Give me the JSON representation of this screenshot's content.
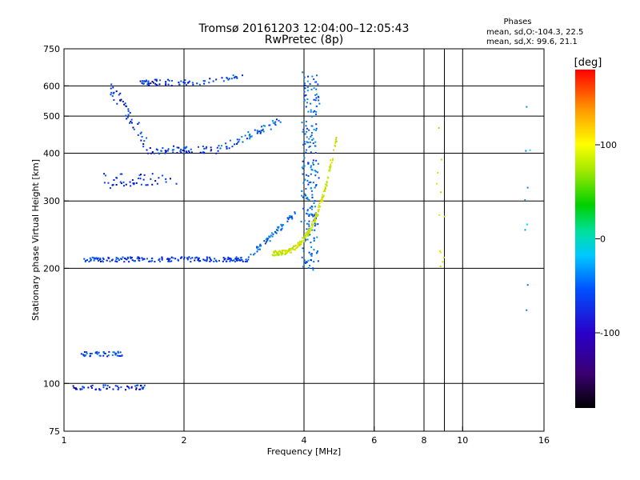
{
  "chart_data": {
    "type": "scatter",
    "title": "Tromsø 20161203 12:04:00–12:05:43",
    "subtitle": "RwPretec (8p)",
    "xlabel": "Frequency [MHz]",
    "ylabel": "Stationary phase Virtual Height [km]",
    "x_scale": "log",
    "y_scale": "log",
    "xlim": [
      1,
      16
    ],
    "ylim": [
      75,
      750
    ],
    "x_ticks": [
      1,
      2,
      4,
      6,
      8,
      10,
      16
    ],
    "y_ticks": [
      75,
      100,
      200,
      300,
      400,
      500,
      600,
      750
    ],
    "x_gridlines": [
      2,
      4,
      6,
      8,
      9,
      10
    ],
    "y_gridlines": [
      100,
      200,
      300,
      400,
      500,
      600
    ],
    "grid": true,
    "stats": {
      "heading": "Phases",
      "line_o": "mean, sd,O:-104.3, 22.5",
      "line_x": "mean, sd,X:  99.6, 21.1"
    },
    "colorbar": {
      "label": "[deg]",
      "range": [
        -180,
        180
      ],
      "ticks": [
        100,
        0,
        -100
      ],
      "colormap": "rainbow"
    },
    "clusters": [
      {
        "x0": 1.12,
        "x1": 2.9,
        "y": 212,
        "spread": 6,
        "phase": -110,
        "n": 180,
        "shape": "trace"
      },
      {
        "x0": 2.9,
        "x1": 3.8,
        "y0": 215,
        "y1": 280,
        "spread": 8,
        "phase": -95,
        "n": 60,
        "shape": "ramp"
      },
      {
        "x0": 3.95,
        "x1": 4.3,
        "y0": 200,
        "y1": 650,
        "spread": 6,
        "phase": -95,
        "n": 220,
        "shape": "column"
      },
      {
        "x0": 3.3,
        "x1": 4.8,
        "y0": 220,
        "y1": 440,
        "spread": 6,
        "phase": 95,
        "n": 200,
        "shape": "curve"
      },
      {
        "x0": 1.55,
        "x1": 2.05,
        "y": 615,
        "spread": 8,
        "phase": -115,
        "n": 50,
        "shape": "trace"
      },
      {
        "x0": 2.05,
        "x1": 2.8,
        "y0": 610,
        "y1": 640,
        "spread": 6,
        "phase": -110,
        "n": 25,
        "shape": "ramp"
      },
      {
        "x0": 1.3,
        "x1": 1.6,
        "y0": 600,
        "y1": 430,
        "spread": 20,
        "phase": -115,
        "n": 45,
        "shape": "ramp"
      },
      {
        "x0": 1.6,
        "x1": 2.4,
        "y": 410,
        "spread": 10,
        "phase": -110,
        "n": 60,
        "shape": "trace"
      },
      {
        "x0": 2.4,
        "x1": 3.5,
        "y0": 410,
        "y1": 490,
        "spread": 10,
        "phase": -100,
        "n": 55,
        "shape": "ramp"
      },
      {
        "x0": 1.25,
        "x1": 1.9,
        "y": 340,
        "spread": 18,
        "phase": -112,
        "n": 45,
        "shape": "trace"
      },
      {
        "x0": 1.1,
        "x1": 1.4,
        "y": 120,
        "spread": 6,
        "phase": -105,
        "n": 45,
        "shape": "trace"
      },
      {
        "x0": 1.05,
        "x1": 1.6,
        "y": 98,
        "spread": 6,
        "phase": -118,
        "n": 55,
        "shape": "trace"
      },
      {
        "x0": 8.6,
        "x1": 8.9,
        "y0": 200,
        "y1": 500,
        "spread": 4,
        "phase": 90,
        "n": 12,
        "shape": "column"
      },
      {
        "x0": 14.2,
        "x1": 14.6,
        "y0": 150,
        "y1": 620,
        "spread": 4,
        "phase": -70,
        "n": 10,
        "shape": "column"
      }
    ]
  }
}
